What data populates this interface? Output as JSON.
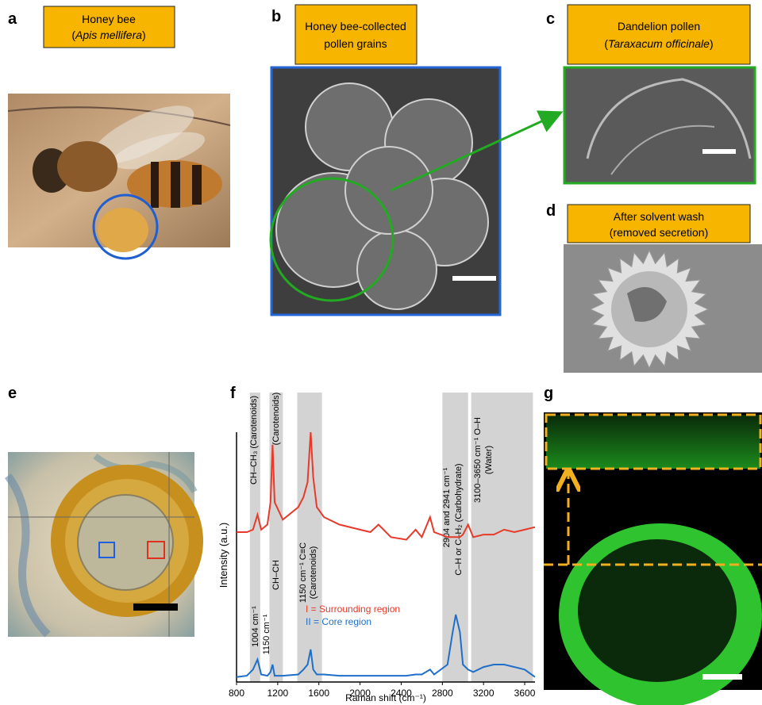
{
  "panels": [
    {
      "letter": "a",
      "line1": "Honey bee",
      "line2": [
        "(",
        "Apis mellifera",
        ")"
      ]
    },
    {
      "letter": "b",
      "line1": "Honey bee-collected",
      "line2": "pollen grains"
    },
    {
      "letter": "c",
      "line1": "Dandelion pollen",
      "line2": [
        "(",
        "Taraxacum officinale",
        ")"
      ]
    },
    {
      "letter": "d",
      "line1": "After solvent wash",
      "line2": "(removed secretion)"
    },
    {
      "letter": "e"
    },
    {
      "letter": "f"
    },
    {
      "letter": "g"
    }
  ],
  "chart_data": {
    "type": "line",
    "x_label": "Raman shift (cm⁻¹)",
    "y_label": "Intensity (a.u.)",
    "xlim": [
      800,
      3700
    ],
    "ylim": [
      0,
      100
    ],
    "xticks": [
      800,
      1200,
      1600,
      2000,
      2400,
      2800,
      3200,
      3600
    ],
    "x": [
      800,
      900,
      960,
      1004,
      1040,
      1100,
      1130,
      1150,
      1170,
      1250,
      1400,
      1450,
      1490,
      1520,
      1545,
      1580,
      1650,
      1800,
      2000,
      2100,
      2180,
      2300,
      2450,
      2540,
      2600,
      2680,
      2720,
      2850,
      2900,
      2930,
      2970,
      3000,
      3050,
      3100,
      3200,
      3300,
      3400,
      3500,
      3600,
      3700
    ],
    "series": [
      {
        "name": "I = Surrounding region",
        "color": "#e63a2a",
        "values": [
          60,
          60,
          61,
          67,
          61,
          63,
          72,
          95,
          72,
          65,
          70,
          74,
          80,
          100,
          82,
          70,
          66,
          63,
          61,
          60,
          63,
          58,
          57,
          61,
          58,
          66,
          60,
          58,
          58,
          58,
          58,
          59,
          63,
          58,
          59,
          59,
          61,
          60,
          61,
          62
        ]
      },
      {
        "name": "II = Core region",
        "color": "#1f6fc8",
        "values": [
          2,
          2.5,
          5,
          9,
          3,
          2.5,
          4,
          7,
          2.5,
          2.5,
          3,
          5,
          7,
          13,
          5,
          3,
          3,
          2.5,
          2.5,
          2.5,
          2.5,
          2.5,
          2.5,
          3,
          3,
          5,
          3,
          7,
          20,
          27,
          20,
          7,
          5,
          4,
          6,
          7,
          7,
          6,
          5,
          2
        ]
      }
    ],
    "bands": [
      [
        930,
        1030
      ],
      [
        1120,
        1250
      ],
      [
        1390,
        1630
      ],
      [
        2800,
        3050
      ],
      [
        3080,
        3680
      ]
    ],
    "band_color": "#d3d3d3",
    "annotations": [
      "CH–CH₃ (Carotenoids)",
      "(Carotenoids)",
      "CH–CH",
      "1004 cm⁻¹",
      "1150 cm⁻¹",
      "1150 cm⁻¹ C≡C",
      "(Carotenoids)",
      "2904 and 2941 cm⁻¹",
      "C–H or C–H₂ (Carbohydrate)",
      "3100–3650 cm⁻¹ O–H",
      "(Water)"
    ]
  }
}
